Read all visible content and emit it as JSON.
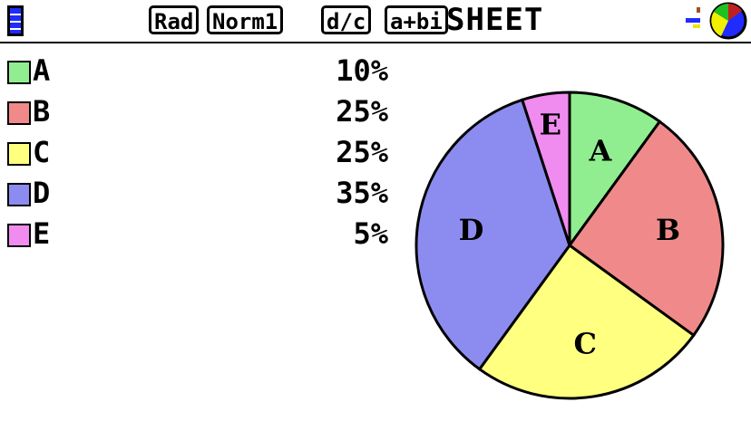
{
  "status_bar": {
    "battery_icon": "battery-icon",
    "angle": "Rad",
    "display": "Norm1",
    "fraction": "d/c",
    "complex": "a+bi",
    "mode": "SHEET",
    "app_icon": "pie-chart-icon"
  },
  "chart_data": {
    "type": "pie",
    "categories": [
      "A",
      "B",
      "C",
      "D",
      "E"
    ],
    "values": [
      10,
      25,
      25,
      35,
      5
    ],
    "labels": [
      "10%",
      "25%",
      "25%",
      "35%",
      "5%"
    ],
    "colors": [
      "#90ee90",
      "#f08a8a",
      "#ffff80",
      "#8c8cf0",
      "#f08cf0"
    ],
    "legend": "left",
    "start": "top",
    "direction": "clockwise"
  }
}
